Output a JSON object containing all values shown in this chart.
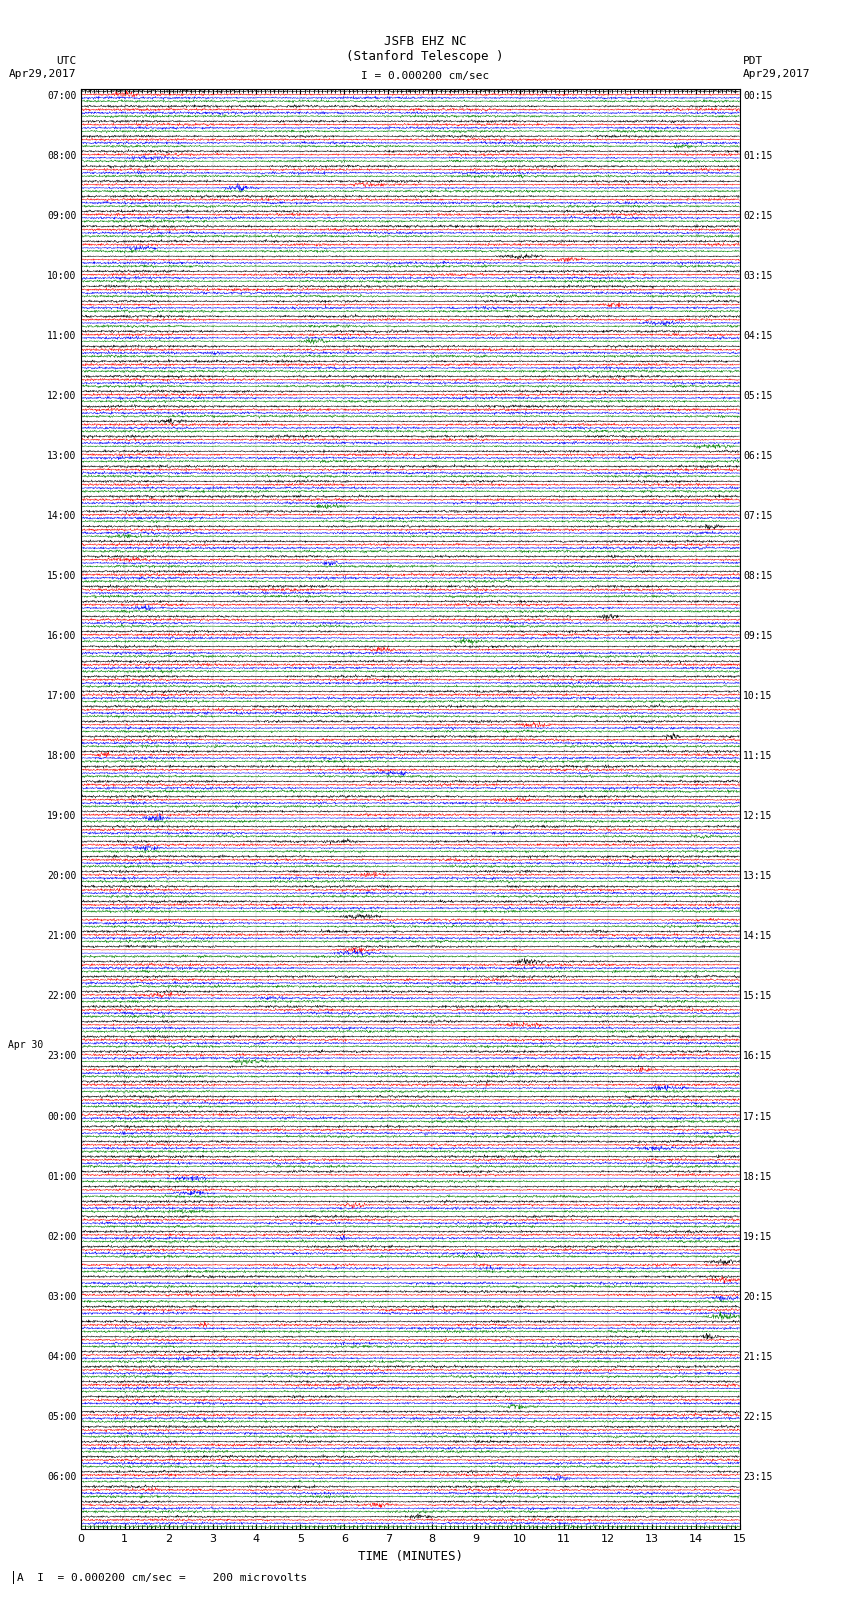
{
  "title_line1": "JSFB EHZ NC",
  "title_line2": "(Stanford Telescope )",
  "label_utc": "UTC",
  "label_pdt": "PDT",
  "date_left": "Apr29,2017",
  "date_right": "Apr29,2017",
  "scale_label": "I = 0.000200 cm/sec",
  "bottom_label": "A  I  = 0.000200 cm/sec =    200 microvolts",
  "xlabel": "TIME (MINUTES)",
  "trace_colors": [
    "black",
    "red",
    "blue",
    "green"
  ],
  "total_minutes": 15,
  "bg_color": "white",
  "left_labels_utc": [
    "07:00",
    "",
    "",
    "",
    "08:00",
    "",
    "",
    "",
    "09:00",
    "",
    "",
    "",
    "10:00",
    "",
    "",
    "",
    "11:00",
    "",
    "",
    "",
    "12:00",
    "",
    "",
    "",
    "13:00",
    "",
    "",
    "",
    "14:00",
    "",
    "",
    "",
    "15:00",
    "",
    "",
    "",
    "16:00",
    "",
    "",
    "",
    "17:00",
    "",
    "",
    "",
    "18:00",
    "",
    "",
    "",
    "19:00",
    "",
    "",
    "",
    "20:00",
    "",
    "",
    "",
    "21:00",
    "",
    "",
    "",
    "22:00",
    "",
    "",
    "",
    "23:00",
    "",
    "",
    "",
    "00:00",
    "",
    "",
    "",
    "01:00",
    "",
    "",
    "",
    "02:00",
    "",
    "",
    "",
    "03:00",
    "",
    "",
    "",
    "04:00",
    "",
    "",
    "",
    "05:00",
    "",
    "",
    "",
    "06:00",
    "",
    "",
    ""
  ],
  "right_labels_pdt": [
    "00:15",
    "",
    "",
    "",
    "01:15",
    "",
    "",
    "",
    "02:15",
    "",
    "",
    "",
    "03:15",
    "",
    "",
    "",
    "04:15",
    "",
    "",
    "",
    "05:15",
    "",
    "",
    "",
    "06:15",
    "",
    "",
    "",
    "07:15",
    "",
    "",
    "",
    "08:15",
    "",
    "",
    "",
    "09:15",
    "",
    "",
    "",
    "10:15",
    "",
    "",
    "",
    "11:15",
    "",
    "",
    "",
    "12:15",
    "",
    "",
    "",
    "13:15",
    "",
    "",
    "",
    "14:15",
    "",
    "",
    "",
    "15:15",
    "",
    "",
    "",
    "16:15",
    "",
    "",
    "",
    "17:15",
    "",
    "",
    "",
    "18:15",
    "",
    "",
    "",
    "19:15",
    "",
    "",
    "",
    "20:15",
    "",
    "",
    "",
    "21:15",
    "",
    "",
    "",
    "22:15",
    "",
    "",
    "",
    "23:15",
    "",
    "",
    ""
  ],
  "figwidth": 8.5,
  "figheight": 16.13,
  "dpi": 100
}
